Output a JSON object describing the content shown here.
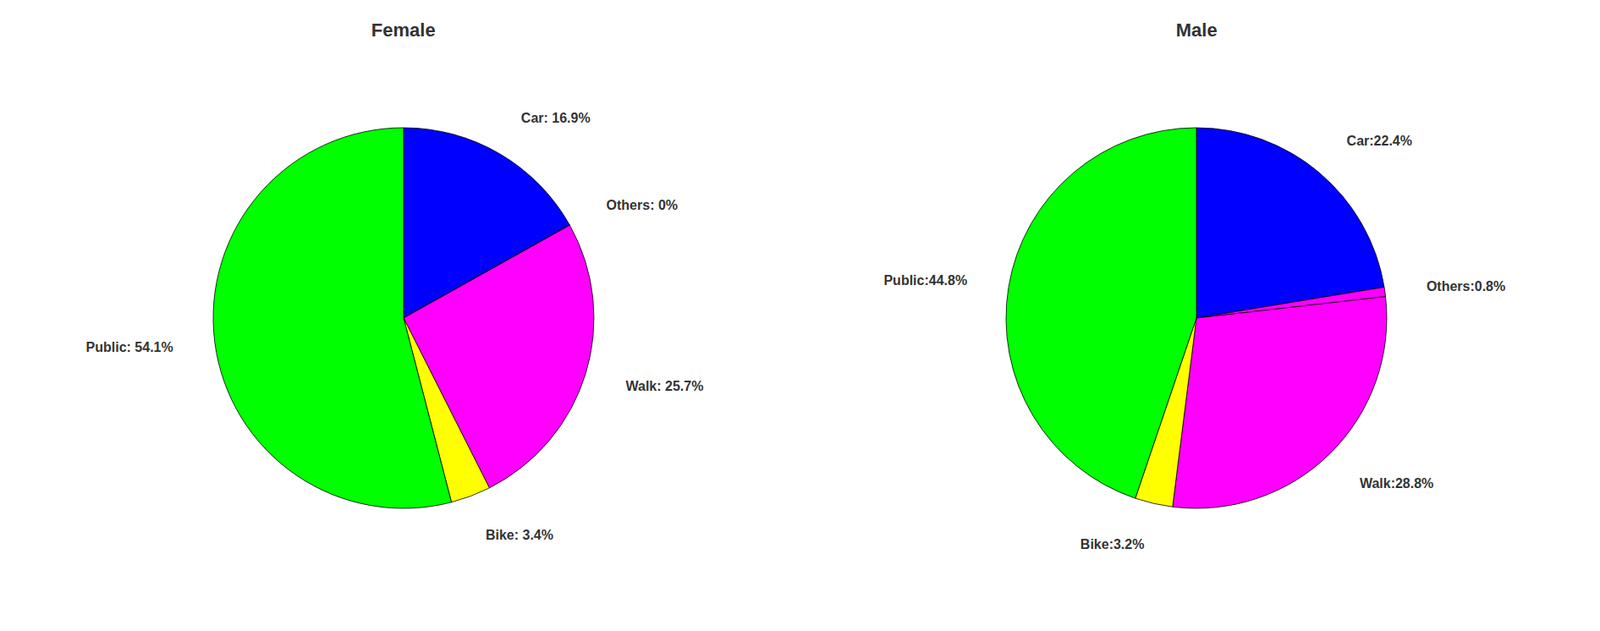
{
  "chart_data": [
    {
      "type": "pie",
      "title": "Female",
      "categories": [
        "Car: 16.9%",
        "Others: 0%",
        "Walk: 25.7%",
        "Bike: 3.4%",
        "Public: 54.1%"
      ],
      "values": [
        16.9,
        0.001,
        25.7,
        3.4,
        54.1
      ],
      "colors": [
        "#0000ff",
        "#ff00ff",
        "#ff00ff",
        "#ffff00",
        "#00ff00"
      ]
    },
    {
      "type": "pie",
      "title": "Male",
      "categories": [
        "Car:22.4%",
        "Others:0.8%",
        "Walk:28.8%",
        "Bike:3.2%",
        "Public:44.8%"
      ],
      "values": [
        22.4,
        0.8,
        28.8,
        3.2,
        44.8
      ],
      "colors": [
        "#0000ff",
        "#ff00ff",
        "#ff00ff",
        "#ffff00",
        "#00ff00"
      ]
    }
  ]
}
